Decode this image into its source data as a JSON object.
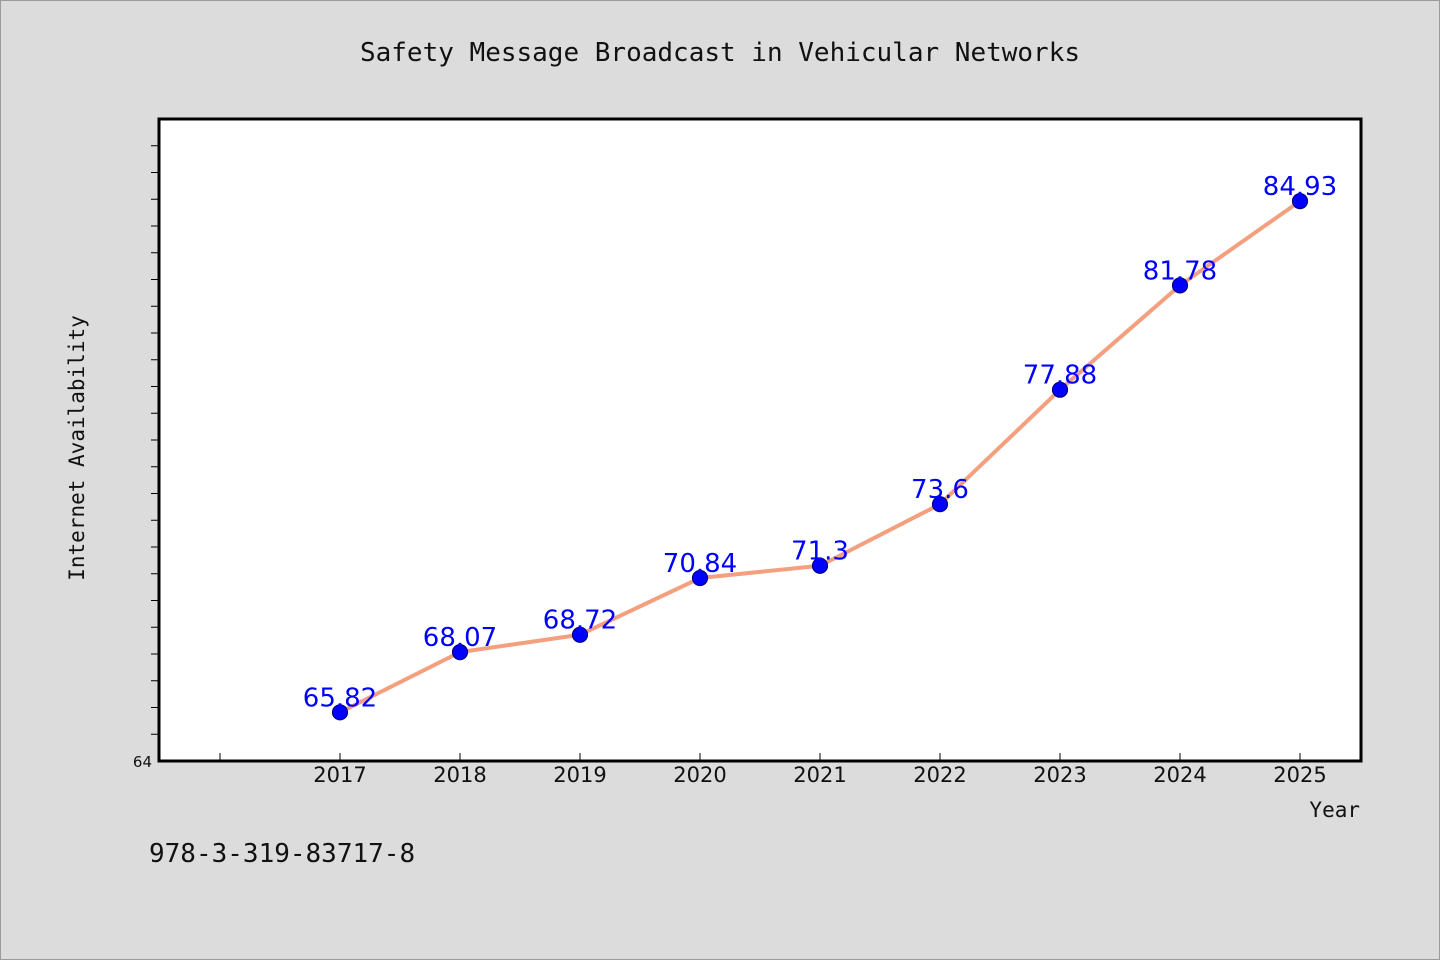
{
  "page": {
    "footer_text": "978-3-319-83717-8"
  },
  "chart_data": {
    "type": "line",
    "title": "Safety Message Broadcast in Vehicular Networks",
    "xlabel": "Year",
    "ylabel": "Internet Availability",
    "categories": [
      "2017",
      "2018",
      "2019",
      "2020",
      "2021",
      "2022",
      "2023",
      "2024",
      "2025"
    ],
    "x_tick_labels": [
      "2017",
      "2018",
      "2019",
      "2020",
      "2021",
      "2022",
      "2023",
      "2024",
      "2025"
    ],
    "y_tick_labels": [
      "64"
    ],
    "series": [
      {
        "values": [
          65.82,
          68.07,
          68.72,
          70.84,
          71.3,
          73.6,
          77.88,
          81.78,
          84.93
        ],
        "data_labels": [
          "65.82",
          "68.07",
          "68.72",
          "70.84",
          "71.3",
          "73.6",
          "77.88",
          "81.78",
          "84.93"
        ]
      }
    ],
    "ylim": [
      64,
      88
    ],
    "grid": false,
    "colors": {
      "line": "#f4a07f",
      "marker": "#0000ff",
      "marker_edge": "#000080",
      "data_label": "#0000ff",
      "plot_background": "#ffffff",
      "figure_background": "#dcdcdc"
    }
  }
}
